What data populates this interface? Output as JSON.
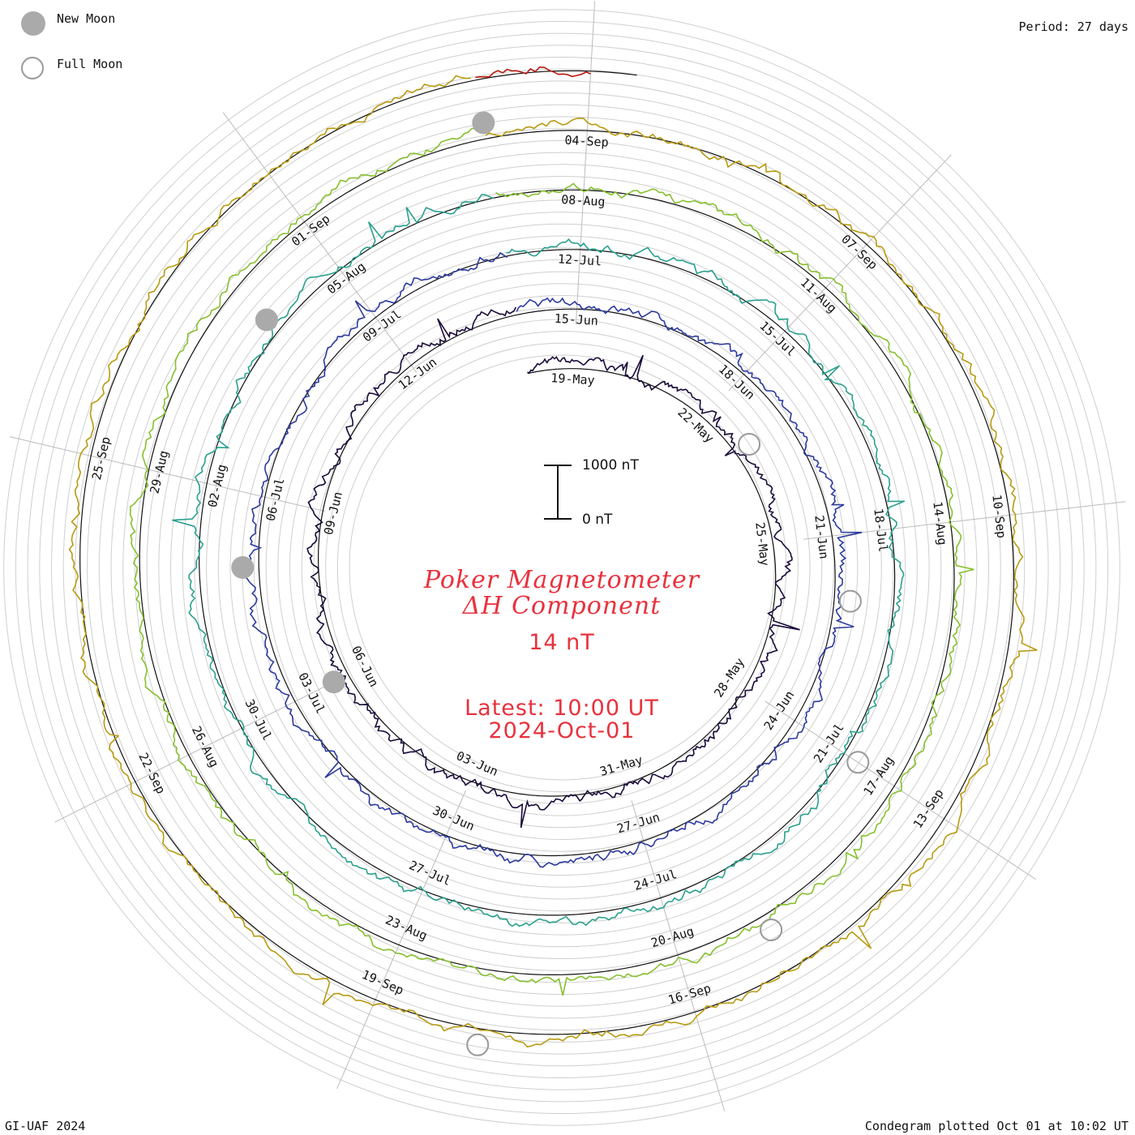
{
  "legend": {
    "new_moon_label": "New Moon",
    "full_moon_label": "Full Moon",
    "new_moon_color": "#aaaaaa",
    "full_moon_color": "#999999"
  },
  "period_label": "Period: 27 days",
  "footer": {
    "left": "GI-UAF 2024",
    "right": "Condegram plotted Oct 01 at 10:02 UT"
  },
  "title": {
    "line1": "Poker Magnetometer",
    "line2": "ΔH Component",
    "value": "14 nT",
    "latest_line1": "Latest: 10:00 UT",
    "latest_line2": "2024-Oct-01",
    "color": "#e8313d"
  },
  "scale_bar": {
    "top_label": "1000 nT",
    "bottom_label": "0 nT"
  },
  "chart_data": {
    "type": "line",
    "subtype": "condegram spiral",
    "period_days": 27,
    "units": "nT",
    "scale_nT": [
      0,
      1000
    ],
    "rotations": [
      {
        "start": "2024-05-18",
        "end": "2024-06-14",
        "color": "#1a0a3a",
        "date_labels": [
          "19-May",
          "22-May",
          "25-May",
          "28-May",
          "31-May",
          "03-Jun",
          "06-Jun",
          "09-Jun",
          "12-Jun"
        ]
      },
      {
        "start": "2024-06-14",
        "end": "2024-07-11",
        "color": "#2c3a9e",
        "date_labels": [
          "15-Jun",
          "18-Jun",
          "21-Jun",
          "24-Jun",
          "27-Jun",
          "30-Jun",
          "03-Jul",
          "06-Jul",
          "09-Jul"
        ]
      },
      {
        "start": "2024-07-11",
        "end": "2024-08-07",
        "color": "#2aa08e",
        "date_labels": [
          "12-Jul",
          "15-Jul",
          "18-Jul",
          "21-Jul",
          "24-Jul",
          "27-Jul",
          "30-Jul",
          "02-Aug",
          "05-Aug"
        ]
      },
      {
        "start": "2024-08-07",
        "end": "2024-09-03",
        "color": "#86c02f",
        "date_labels": [
          "08-Aug",
          "11-Aug",
          "14-Aug",
          "17-Aug",
          "20-Aug",
          "23-Aug",
          "26-Aug",
          "29-Aug",
          "01-Sep"
        ]
      },
      {
        "start": "2024-09-03",
        "end": "2024-09-30",
        "color": "#b89a10",
        "date_labels": [
          "04-Sep",
          "07-Sep",
          "10-Sep",
          "13-Sep",
          "16-Sep",
          "19-Sep",
          "22-Sep",
          "25-Sep"
        ]
      },
      {
        "start": "2024-09-30",
        "end": "2024-10-01",
        "color": "#b81a10",
        "date_labels": []
      }
    ],
    "moon_phases": {
      "new_moon": [
        "2024-06-06",
        "2024-07-05",
        "2024-08-04",
        "2024-09-03"
      ],
      "full_moon": [
        "2024-05-23",
        "2024-06-22",
        "2024-07-21",
        "2024-08-19",
        "2024-09-18"
      ]
    },
    "latest": "2024-10-01 10:00 UT",
    "latest_value_nT": 14
  }
}
